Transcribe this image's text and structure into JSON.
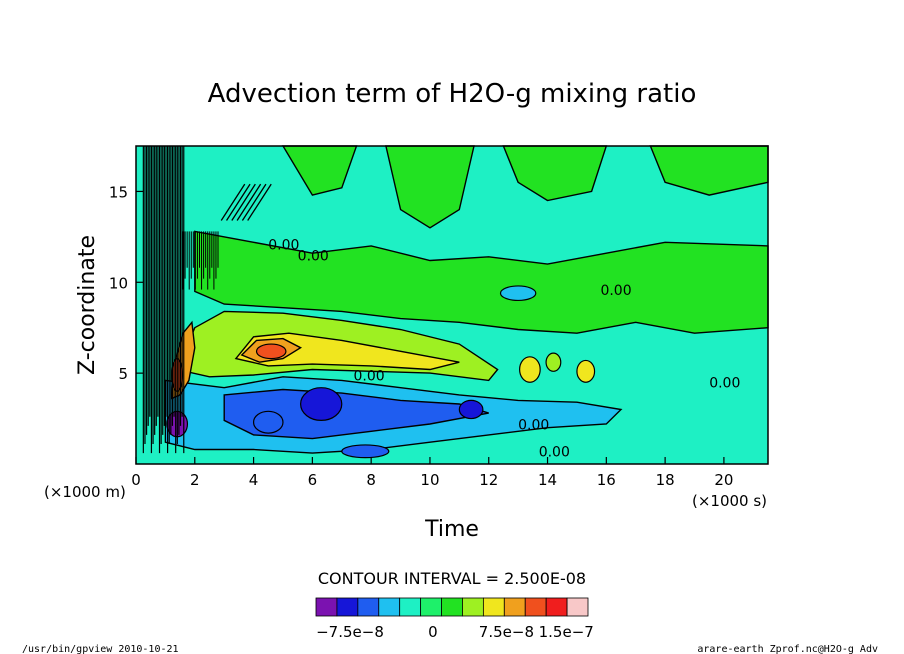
{
  "chart_data": {
    "type": "heatmap",
    "title": "Advection term of H2O-g mixing ratio",
    "xlabel": "Time",
    "ylabel": "Z-coordinate",
    "x_unit": "(×1000 s)",
    "y_unit": "(×1000 m)",
    "xlim": [
      0,
      21.5
    ],
    "ylim": [
      0,
      17.5
    ],
    "x_ticks": [
      0,
      2,
      4,
      6,
      8,
      10,
      12,
      14,
      16,
      18,
      20
    ],
    "y_ticks": [
      5,
      10,
      15
    ],
    "contour_interval_text": "CONTOUR INTERVAL = 2.500E-08",
    "contour_labels": [
      "0.00"
    ],
    "colorbar": {
      "levels": 13,
      "colors": [
        "#7b12b0",
        "#1616d8",
        "#1f5df0",
        "#1fc0f0",
        "#1ef0c4",
        "#1ef06a",
        "#22e222",
        "#9ef022",
        "#f0e61e",
        "#f0a01e",
        "#f0501e",
        "#f01e1e",
        "#f8c8c8"
      ],
      "tick_labels": [
        "−7.5e−8",
        "0",
        "7.5e−8",
        "1.5e−7"
      ]
    },
    "features": [
      {
        "name": "positive core",
        "x": [
          1.0,
          1.8
        ],
        "y": [
          3.5,
          7.5
        ],
        "value": "1.5e-7"
      },
      {
        "name": "positive core",
        "x": [
          4.0,
          5.5
        ],
        "y": [
          5.5,
          6.5
        ],
        "value": "1.5e-7"
      },
      {
        "name": "positive band",
        "x": [
          2.0,
          12.0
        ],
        "y": [
          4.5,
          7.5
        ],
        "value": "5e-8"
      },
      {
        "name": "negative band",
        "x": [
          1.0,
          16.0
        ],
        "y": [
          0.5,
          4.5
        ],
        "value": "-5e-8"
      }
    ]
  },
  "footer": {
    "left": "/usr/bin/gpview  2010-10-21",
    "right": "arare-earth_Zprof.nc@H2O-g_Adv"
  }
}
